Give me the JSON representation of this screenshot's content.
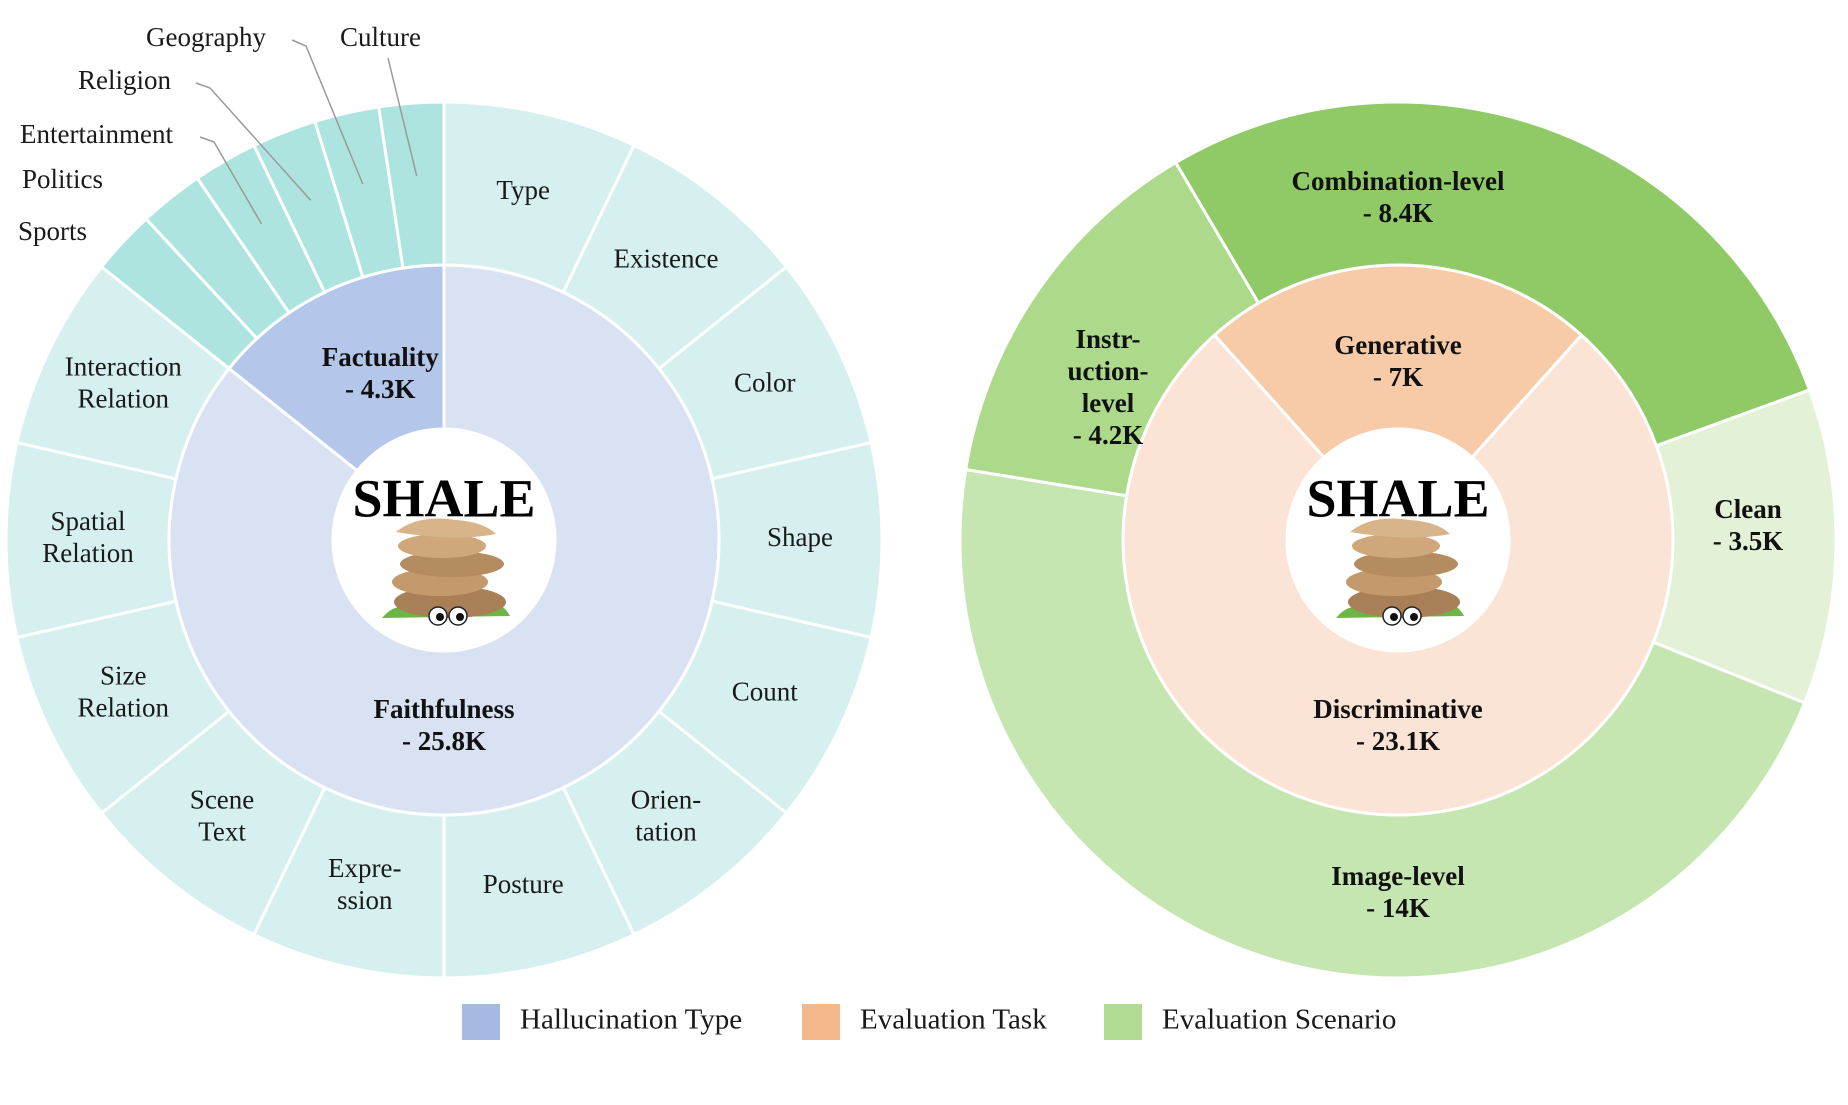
{
  "colors": {
    "hallucination_inner_faithfulness": "#d9e2f3",
    "hallucination_inner_factuality": "#b4c6ea",
    "hallucination_outer_faith": "#d5f0ee",
    "hallucination_outer_fact": "#ade4e0",
    "task_generative": "#f7caa8",
    "task_discriminative": "#fbe4d5",
    "scenario_combination": "#8fca66",
    "scenario_instruction": "#add98a",
    "scenario_image": "#c5e5b1",
    "scenario_clean": "#e3f1d6",
    "legend_hallucination": "#a7b9e3",
    "legend_task": "#f5b88e",
    "legend_scenario": "#b2dc94",
    "separator": "#ffffff",
    "leader_line": "#9a9a9a"
  },
  "brand": {
    "name": "SHALE",
    "logo_icon": "stone-pile-logo-icon"
  },
  "chart_data": [
    {
      "type": "sunburst",
      "title": "",
      "inner": [
        {
          "label": "Factuality",
          "value_label": "- 4.3K",
          "value": 4.3
        },
        {
          "label": "Faithfulness",
          "value_label": "- 25.8K",
          "value": 25.8
        }
      ],
      "outer": [
        {
          "label": "Sports",
          "parent": "Factuality"
        },
        {
          "label": "Politics",
          "parent": "Factuality"
        },
        {
          "label": "Entertainment",
          "parent": "Factuality"
        },
        {
          "label": "Religion",
          "parent": "Factuality"
        },
        {
          "label": "Geography",
          "parent": "Factuality"
        },
        {
          "label": "Culture",
          "parent": "Factuality"
        },
        {
          "label": "Type",
          "parent": "Faithfulness"
        },
        {
          "label": "Existence",
          "parent": "Faithfulness"
        },
        {
          "label": "Color",
          "parent": "Faithfulness"
        },
        {
          "label": "Shape",
          "parent": "Faithfulness"
        },
        {
          "label": "Count",
          "parent": "Faithfulness"
        },
        {
          "label": "Orien-\ntation",
          "parent": "Faithfulness"
        },
        {
          "label": "Posture",
          "parent": "Faithfulness"
        },
        {
          "label": "Expre-\nssion",
          "parent": "Faithfulness"
        },
        {
          "label": "Scene\nText",
          "parent": "Faithfulness"
        },
        {
          "label": "Size\nRelation",
          "parent": "Faithfulness"
        },
        {
          "label": "Spatial\nRelation",
          "parent": "Faithfulness"
        },
        {
          "label": "Interaction\nRelation",
          "parent": "Faithfulness"
        }
      ]
    },
    {
      "type": "sunburst",
      "title": "",
      "inner": [
        {
          "label": "Generative",
          "value_label": "- 7K",
          "value": 7
        },
        {
          "label": "Discriminative",
          "value_label": "- 23.1K",
          "value": 23.1
        }
      ],
      "outer": [
        {
          "label": "Combination-level",
          "value_label": "- 8.4K",
          "value": 8.4
        },
        {
          "label": "Clean",
          "value_label": "- 3.5K",
          "value": 3.5
        },
        {
          "label": "Image-level",
          "value_label": "- 14K",
          "value": 14
        },
        {
          "label": "Instr-\nuction-\nlevel",
          "value_label": "- 4.2K",
          "value": 4.2
        }
      ]
    }
  ],
  "legend": {
    "placement": "bottom",
    "items": [
      {
        "label": "Hallucination Type",
        "color": "#a7b9e3"
      },
      {
        "label": "Evaluation Task",
        "color": "#f5b88e"
      },
      {
        "label": "Evaluation Scenario",
        "color": "#b2dc94"
      }
    ]
  }
}
